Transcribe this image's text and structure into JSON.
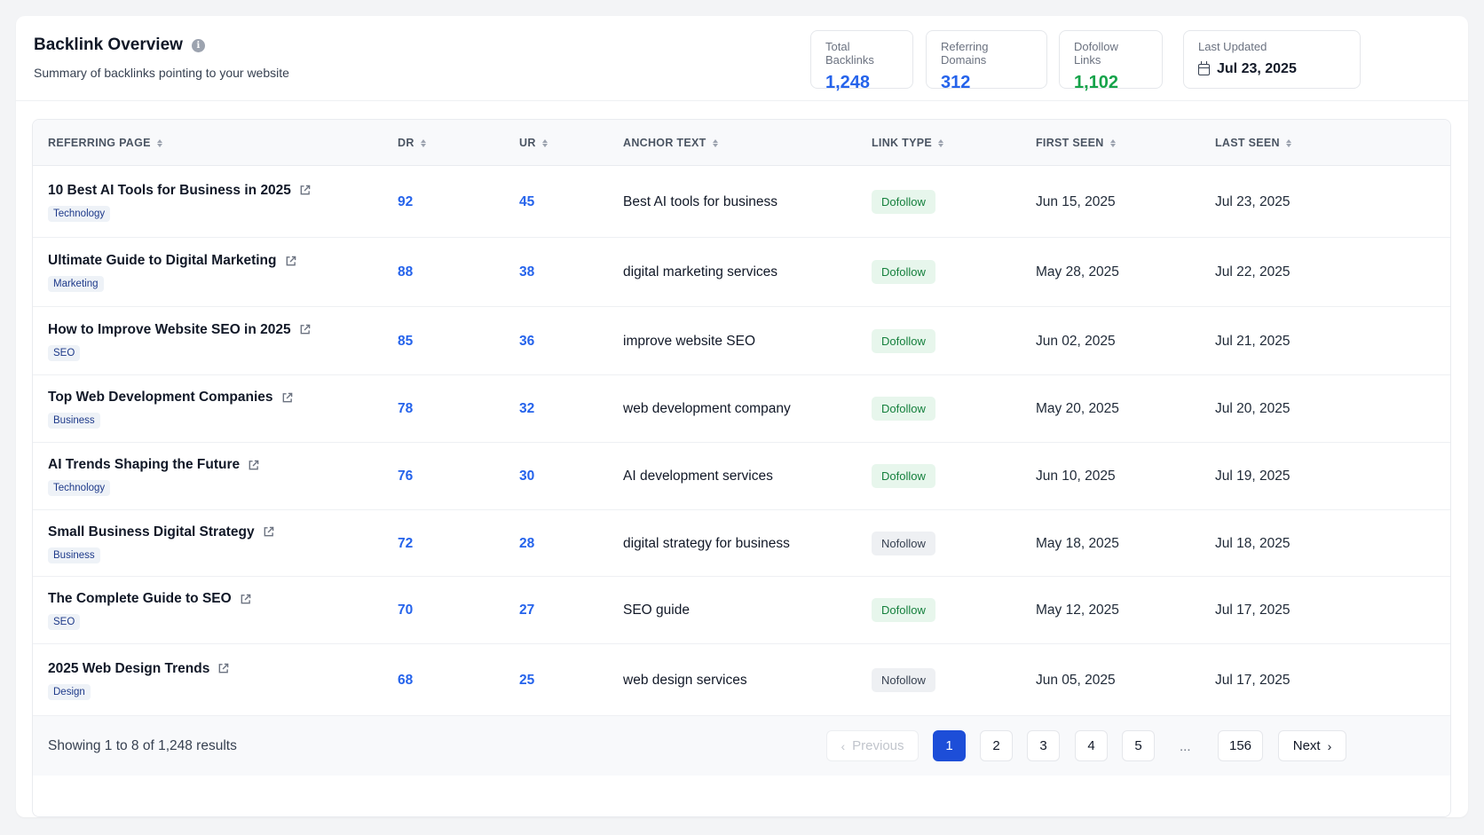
{
  "header": {
    "title": "Backlink Overview",
    "info_icon": "i",
    "subtitle": "Summary of backlinks pointing to your website"
  },
  "stats": {
    "total_backlinks": {
      "label": "Total Backlinks",
      "value": "1,248"
    },
    "referring_domains": {
      "label": "Referring Domains",
      "value": "312"
    },
    "dofollow_links": {
      "label": "Dofollow Links",
      "value": "1,102"
    },
    "last_updated": {
      "label": "Last Updated",
      "value": "Jul 23, 2025"
    }
  },
  "table": {
    "columns": [
      "REFERRING PAGE",
      "DR",
      "UR",
      "ANCHOR TEXT",
      "LINK TYPE",
      "FIRST SEEN",
      "LAST SEEN"
    ],
    "rows": [
      {
        "title": "10 Best AI Tools for Business in 2025",
        "tag": "Technology",
        "dr": "92",
        "ur": "45",
        "anchor": "Best AI tools for business",
        "link_type": "Dofollow",
        "first_seen": "Jun 15, 2025",
        "last_seen": "Jul 23, 2025"
      },
      {
        "title": "Ultimate Guide to Digital Marketing",
        "tag": "Marketing",
        "dr": "88",
        "ur": "38",
        "anchor": "digital marketing services",
        "link_type": "Dofollow",
        "first_seen": "May 28, 2025",
        "last_seen": "Jul 22, 2025"
      },
      {
        "title": "How to Improve Website SEO in 2025",
        "tag": "SEO",
        "dr": "85",
        "ur": "36",
        "anchor": "improve website SEO",
        "link_type": "Dofollow",
        "first_seen": "Jun 02, 2025",
        "last_seen": "Jul 21, 2025"
      },
      {
        "title": "Top Web Development Companies",
        "tag": "Business",
        "dr": "78",
        "ur": "32",
        "anchor": "web development company",
        "link_type": "Dofollow",
        "first_seen": "May 20, 2025",
        "last_seen": "Jul 20, 2025"
      },
      {
        "title": "AI Trends Shaping the Future",
        "tag": "Technology",
        "dr": "76",
        "ur": "30",
        "anchor": "AI development services",
        "link_type": "Dofollow",
        "first_seen": "Jun 10, 2025",
        "last_seen": "Jul 19, 2025"
      },
      {
        "title": "Small Business Digital Strategy",
        "tag": "Business",
        "dr": "72",
        "ur": "28",
        "anchor": "digital strategy for business",
        "link_type": "Nofollow",
        "first_seen": "May 18, 2025",
        "last_seen": "Jul 18, 2025"
      },
      {
        "title": "The Complete Guide to SEO",
        "tag": "SEO",
        "dr": "70",
        "ur": "27",
        "anchor": "SEO guide",
        "link_type": "Dofollow",
        "first_seen": "May 12, 2025",
        "last_seen": "Jul 17, 2025"
      },
      {
        "title": "2025 Web Design Trends",
        "tag": "Design",
        "dr": "68",
        "ur": "25",
        "anchor": "web design services",
        "link_type": "Nofollow",
        "first_seen": "Jun 05, 2025",
        "last_seen": "Jul 17, 2025"
      }
    ]
  },
  "footer": {
    "showing": "Showing 1 to 8 of 1,248 results",
    "pagination": {
      "previous": "Previous",
      "next": "Next",
      "pages": [
        "1",
        "2",
        "3",
        "4",
        "5"
      ],
      "ellipsis": "...",
      "last": "156",
      "current": "1"
    }
  },
  "colors": {
    "accent": "#2563eb",
    "success": "#16a34a",
    "active_page": "#1d4ed8"
  },
  "icons": {
    "info": "info-icon",
    "calendar": "calendar-icon",
    "external": "external-link-icon",
    "sort": "sort-icon",
    "chevron_left": "chevron-left-icon",
    "chevron_right": "chevron-right-icon"
  }
}
